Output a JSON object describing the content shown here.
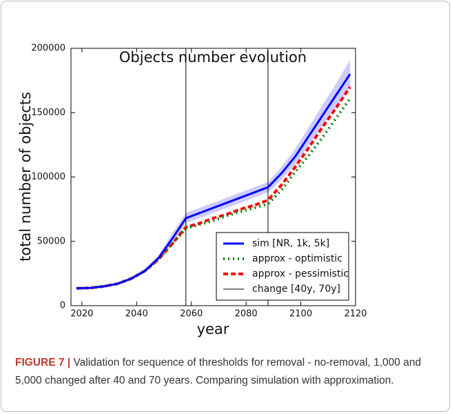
{
  "chart_data": {
    "type": "line",
    "title": "Objects number evolution",
    "x_label": "year",
    "y_label": "total number of objects",
    "x": [
      2018,
      2023,
      2028,
      2033,
      2038,
      2043,
      2048,
      2053,
      2058,
      2063,
      2068,
      2073,
      2078,
      2083,
      2088,
      2093,
      2098,
      2103,
      2108,
      2113,
      2118
    ],
    "series": [
      {
        "name": "sim [NR, 1k, 5k]",
        "color": "#0000ff",
        "style": "solid",
        "values": [
          13500,
          13800,
          15000,
          17000,
          21000,
          27000,
          37000,
          52000,
          68000,
          72000,
          76000,
          80000,
          84000,
          88000,
          92000,
          103000,
          116000,
          132000,
          148000,
          164000,
          180000
        ]
      },
      {
        "name": "approx - optimistic",
        "color": "#008000",
        "style": "dotted",
        "values": [
          13500,
          13800,
          15000,
          17000,
          21000,
          27000,
          36000,
          48000,
          60000,
          63000,
          66000,
          70000,
          73000,
          76000,
          79000,
          90000,
          104000,
          117000,
          131000,
          146000,
          161000
        ]
      },
      {
        "name": "approx - pessimistic",
        "color": "#ff0000",
        "style": "dashed",
        "values": [
          13500,
          13800,
          15000,
          17000,
          21000,
          27000,
          36000,
          48000,
          61000,
          64000,
          68000,
          71000,
          75000,
          78000,
          82000,
          94000,
          108000,
          123000,
          139000,
          154000,
          170000
        ]
      }
    ],
    "band": {
      "color": "#8080ff",
      "lower": [
        13000,
        13300,
        14500,
        16300,
        20000,
        25500,
        35000,
        48000,
        64000,
        68000,
        72000,
        76000,
        80000,
        84000,
        88000,
        98000,
        110000,
        125000,
        140000,
        155000,
        170000
      ],
      "upper": [
        14000,
        14300,
        15500,
        17700,
        22000,
        28500,
        39000,
        56000,
        72000,
        76000,
        80000,
        84000,
        88000,
        92000,
        96000,
        108000,
        122000,
        139000,
        156000,
        173000,
        191000
      ]
    },
    "vlines": {
      "name": "change [40y, 70y]",
      "color": "#000000",
      "values": [
        2058,
        2088
      ]
    },
    "xlim": [
      2016,
      2120
    ],
    "xticks": [
      2020,
      2040,
      2060,
      2080,
      2100,
      2120
    ],
    "ylim": [
      0,
      200000
    ],
    "yticks": [
      0,
      50000,
      100000,
      150000,
      200000
    ],
    "legend": "lower right"
  },
  "caption": {
    "label": "FIGURE 7 |",
    "text": "Validation for sequence of thresholds for removal - no-removal, 1,000 and 5,000 changed after 40 and 70 years. Comparing simulation with approximation."
  }
}
